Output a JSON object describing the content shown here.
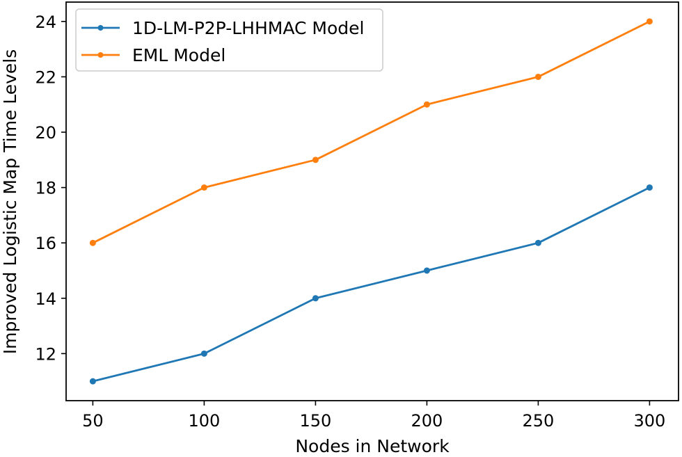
{
  "chart_data": {
    "type": "line",
    "title": "",
    "xlabel": "Nodes in Network",
    "ylabel": "Improved Logistic Map Time Levels",
    "x": [
      50,
      100,
      150,
      200,
      250,
      300
    ],
    "xticks": [
      "50",
      "100",
      "150",
      "200",
      "250",
      "300"
    ],
    "yticks": [
      "12",
      "14",
      "16",
      "18",
      "20",
      "22",
      "24"
    ],
    "xlim": [
      38,
      313
    ],
    "ylim": [
      10.3,
      24.7
    ],
    "grid": false,
    "legend_position": "top-left",
    "series": [
      {
        "name": "1D-LM-P2P-LHHMAC Model",
        "color": "#1f77b4",
        "values": [
          11,
          12,
          14,
          15,
          16,
          18
        ]
      },
      {
        "name": "EML Model",
        "color": "#ff7f0e",
        "values": [
          16,
          18,
          19,
          21,
          22,
          24
        ]
      }
    ]
  }
}
